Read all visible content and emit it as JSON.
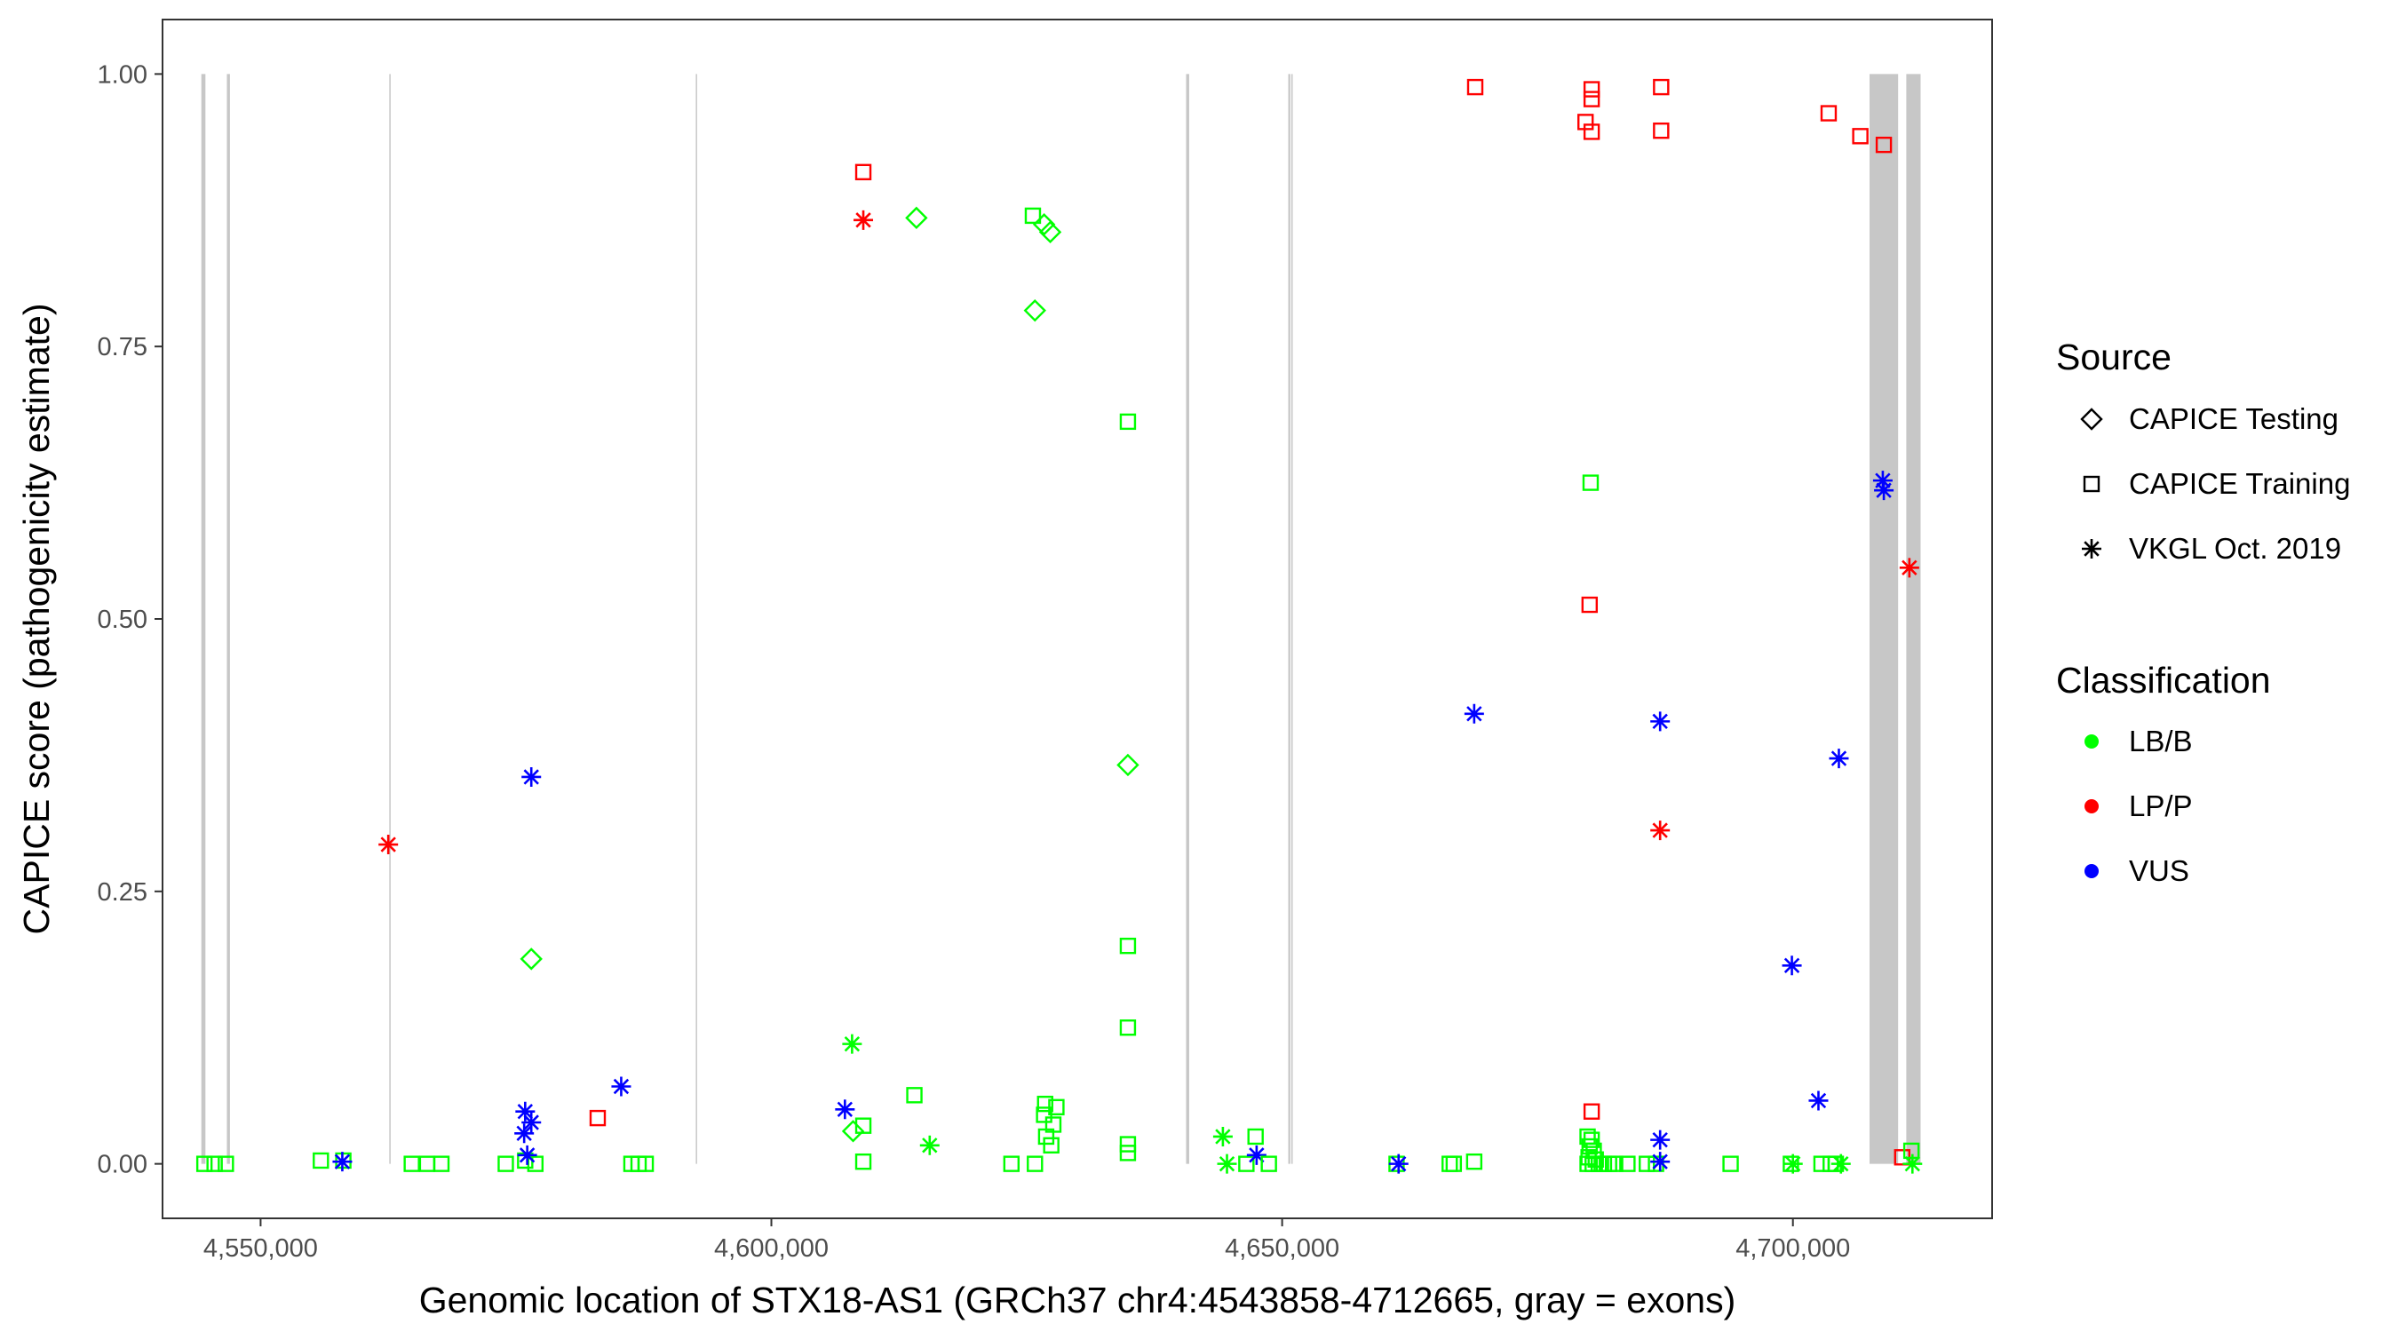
{
  "chart_data": {
    "type": "scatter",
    "title": "",
    "xlabel": "Genomic location of STX18-AS1 (GRCh37 chr4:4543858-4712665, gray = exons)",
    "ylabel": "CAPICE score (pathogenicity estimate)",
    "xlim": [
      4540400,
      4719500
    ],
    "ylim": [
      -0.05,
      1.05
    ],
    "x_ticks": [
      4550000,
      4600000,
      4650000,
      4700000
    ],
    "x_tick_labels": [
      "4,550,000",
      "4,600,000",
      "4,650,000",
      "4,700,000"
    ],
    "y_ticks": [
      0,
      0.25,
      0.5,
      0.75,
      1.0
    ],
    "y_tick_labels": [
      "0.00",
      "0.25",
      "0.50",
      "0.75",
      "1.00"
    ],
    "grid": false,
    "legend_position": "right",
    "exons": [
      [
        4544200,
        4544600
      ],
      [
        4546700,
        4547000
      ],
      [
        4562600,
        4562700
      ],
      [
        4592600,
        4592700
      ],
      [
        4640600,
        4640900
      ],
      [
        4650600,
        4650800
      ],
      [
        4650900,
        4651000
      ],
      [
        4707500,
        4710300
      ],
      [
        4711100,
        4712500
      ]
    ],
    "source_legend": {
      "title": "Source",
      "items": [
        {
          "label": "CAPICE Testing",
          "shape": "diamond"
        },
        {
          "label": "CAPICE Training",
          "shape": "square"
        },
        {
          "label": "VKGL Oct. 2019",
          "shape": "asterisk"
        }
      ]
    },
    "class_legend": {
      "title": "Classification",
      "items": [
        {
          "label": "LB/B",
          "color": "#00ff00"
        },
        {
          "label": "LP/P",
          "color": "#ff0000"
        },
        {
          "label": "VUS",
          "color": "#0000ff"
        }
      ]
    },
    "points": [
      {
        "x": 4544500,
        "y": 0.0,
        "shape": "square",
        "class": "LB/B"
      },
      {
        "x": 4545500,
        "y": 0.0,
        "shape": "square",
        "class": "LB/B"
      },
      {
        "x": 4546600,
        "y": 0.0,
        "shape": "square",
        "class": "LB/B"
      },
      {
        "x": 4555900,
        "y": 0.003,
        "shape": "square",
        "class": "LB/B"
      },
      {
        "x": 4558100,
        "y": 0.003,
        "shape": "square",
        "class": "LB/B"
      },
      {
        "x": 4558000,
        "y": 0.002,
        "shape": "asterisk",
        "class": "VUS"
      },
      {
        "x": 4564800,
        "y": 0.0,
        "shape": "square",
        "class": "LB/B"
      },
      {
        "x": 4566300,
        "y": 0.0,
        "shape": "square",
        "class": "LB/B"
      },
      {
        "x": 4567700,
        "y": 0.0,
        "shape": "square",
        "class": "LB/B"
      },
      {
        "x": 4562500,
        "y": 0.293,
        "shape": "asterisk",
        "class": "LP/P"
      },
      {
        "x": 4574000,
        "y": 0.0,
        "shape": "square",
        "class": "LB/B"
      },
      {
        "x": 4575900,
        "y": 0.003,
        "shape": "square",
        "class": "LB/B"
      },
      {
        "x": 4576900,
        "y": 0.0,
        "shape": "square",
        "class": "LB/B"
      },
      {
        "x": 4576500,
        "y": 0.188,
        "shape": "diamond",
        "class": "LB/B"
      },
      {
        "x": 4576500,
        "y": 0.355,
        "shape": "asterisk",
        "class": "VUS"
      },
      {
        "x": 4575900,
        "y": 0.048,
        "shape": "asterisk",
        "class": "VUS"
      },
      {
        "x": 4576500,
        "y": 0.038,
        "shape": "asterisk",
        "class": "VUS"
      },
      {
        "x": 4575800,
        "y": 0.028,
        "shape": "asterisk",
        "class": "VUS"
      },
      {
        "x": 4576100,
        "y": 0.008,
        "shape": "asterisk",
        "class": "VUS"
      },
      {
        "x": 4583000,
        "y": 0.042,
        "shape": "square",
        "class": "LP/P"
      },
      {
        "x": 4585300,
        "y": 0.071,
        "shape": "asterisk",
        "class": "VUS"
      },
      {
        "x": 4586300,
        "y": 0.0,
        "shape": "square",
        "class": "LB/B"
      },
      {
        "x": 4587000,
        "y": 0.0,
        "shape": "square",
        "class": "LB/B"
      },
      {
        "x": 4587700,
        "y": 0.0,
        "shape": "square",
        "class": "LB/B"
      },
      {
        "x": 4607200,
        "y": 0.05,
        "shape": "asterisk",
        "class": "VUS"
      },
      {
        "x": 4607900,
        "y": 0.11,
        "shape": "asterisk",
        "class": "LB/B"
      },
      {
        "x": 4608000,
        "y": 0.03,
        "shape": "diamond",
        "class": "LB/B"
      },
      {
        "x": 4609000,
        "y": 0.035,
        "shape": "square",
        "class": "LB/B"
      },
      {
        "x": 4609000,
        "y": 0.002,
        "shape": "square",
        "class": "LB/B"
      },
      {
        "x": 4609000,
        "y": 0.91,
        "shape": "square",
        "class": "LP/P"
      },
      {
        "x": 4609000,
        "y": 0.866,
        "shape": "asterisk",
        "class": "LP/P"
      },
      {
        "x": 4614200,
        "y": 0.868,
        "shape": "diamond",
        "class": "LB/B"
      },
      {
        "x": 4614000,
        "y": 0.063,
        "shape": "square",
        "class": "LB/B"
      },
      {
        "x": 4615500,
        "y": 0.017,
        "shape": "asterisk",
        "class": "LB/B"
      },
      {
        "x": 4623500,
        "y": 0.0,
        "shape": "square",
        "class": "LB/B"
      },
      {
        "x": 4625800,
        "y": 0.0,
        "shape": "square",
        "class": "LB/B"
      },
      {
        "x": 4625600,
        "y": 0.87,
        "shape": "square",
        "class": "LB/B"
      },
      {
        "x": 4626700,
        "y": 0.862,
        "shape": "diamond",
        "class": "LB/B"
      },
      {
        "x": 4627300,
        "y": 0.855,
        "shape": "diamond",
        "class": "LB/B"
      },
      {
        "x": 4625800,
        "y": 0.783,
        "shape": "diamond",
        "class": "LB/B"
      },
      {
        "x": 4626800,
        "y": 0.055,
        "shape": "square",
        "class": "LB/B"
      },
      {
        "x": 4627900,
        "y": 0.052,
        "shape": "square",
        "class": "LB/B"
      },
      {
        "x": 4626700,
        "y": 0.045,
        "shape": "square",
        "class": "LB/B"
      },
      {
        "x": 4627600,
        "y": 0.036,
        "shape": "square",
        "class": "LB/B"
      },
      {
        "x": 4626900,
        "y": 0.025,
        "shape": "square",
        "class": "LB/B"
      },
      {
        "x": 4627400,
        "y": 0.017,
        "shape": "square",
        "class": "LB/B"
      },
      {
        "x": 4634900,
        "y": 0.681,
        "shape": "square",
        "class": "LB/B"
      },
      {
        "x": 4634900,
        "y": 0.366,
        "shape": "diamond",
        "class": "LB/B"
      },
      {
        "x": 4634900,
        "y": 0.2,
        "shape": "square",
        "class": "LB/B"
      },
      {
        "x": 4634900,
        "y": 0.125,
        "shape": "square",
        "class": "LB/B"
      },
      {
        "x": 4634900,
        "y": 0.018,
        "shape": "square",
        "class": "LB/B"
      },
      {
        "x": 4634900,
        "y": 0.01,
        "shape": "square",
        "class": "LB/B"
      },
      {
        "x": 4644200,
        "y": 0.025,
        "shape": "asterisk",
        "class": "LB/B"
      },
      {
        "x": 4644600,
        "y": 0.0,
        "shape": "asterisk",
        "class": "LB/B"
      },
      {
        "x": 4646500,
        "y": 0.0,
        "shape": "square",
        "class": "LB/B"
      },
      {
        "x": 4647400,
        "y": 0.025,
        "shape": "square",
        "class": "LB/B"
      },
      {
        "x": 4647500,
        "y": 0.008,
        "shape": "asterisk",
        "class": "VUS"
      },
      {
        "x": 4648700,
        "y": 0.0,
        "shape": "square",
        "class": "LB/B"
      },
      {
        "x": 4661200,
        "y": 0.0,
        "shape": "square",
        "class": "LB/B"
      },
      {
        "x": 4661400,
        "y": 0.0,
        "shape": "asterisk",
        "class": "VUS"
      },
      {
        "x": 4666400,
        "y": 0.0,
        "shape": "square",
        "class": "LB/B"
      },
      {
        "x": 4666800,
        "y": 0.0,
        "shape": "square",
        "class": "LB/B"
      },
      {
        "x": 4668800,
        "y": 0.002,
        "shape": "square",
        "class": "LB/B"
      },
      {
        "x": 4668900,
        "y": 0.988,
        "shape": "square",
        "class": "LP/P"
      },
      {
        "x": 4668800,
        "y": 0.413,
        "shape": "asterisk",
        "class": "VUS"
      },
      {
        "x": 4679700,
        "y": 0.956,
        "shape": "square",
        "class": "LP/P"
      },
      {
        "x": 4680300,
        "y": 0.986,
        "shape": "square",
        "class": "LP/P"
      },
      {
        "x": 4680300,
        "y": 0.977,
        "shape": "square",
        "class": "LP/P"
      },
      {
        "x": 4680300,
        "y": 0.947,
        "shape": "square",
        "class": "LP/P"
      },
      {
        "x": 4680200,
        "y": 0.625,
        "shape": "square",
        "class": "LB/B"
      },
      {
        "x": 4680100,
        "y": 0.513,
        "shape": "square",
        "class": "LP/P"
      },
      {
        "x": 4680300,
        "y": 0.048,
        "shape": "square",
        "class": "LP/P"
      },
      {
        "x": 4679900,
        "y": 0.025,
        "shape": "square",
        "class": "LB/B"
      },
      {
        "x": 4680300,
        "y": 0.022,
        "shape": "square",
        "class": "LB/B"
      },
      {
        "x": 4680100,
        "y": 0.016,
        "shape": "square",
        "class": "LB/B"
      },
      {
        "x": 4680500,
        "y": 0.012,
        "shape": "square",
        "class": "LB/B"
      },
      {
        "x": 4680000,
        "y": 0.006,
        "shape": "square",
        "class": "LB/B"
      },
      {
        "x": 4680700,
        "y": 0.004,
        "shape": "square",
        "class": "LB/B"
      },
      {
        "x": 4679900,
        "y": 0.0,
        "shape": "square",
        "class": "LB/B"
      },
      {
        "x": 4680400,
        "y": 0.0,
        "shape": "square",
        "class": "LB/B"
      },
      {
        "x": 4681000,
        "y": 0.0,
        "shape": "square",
        "class": "LB/B"
      },
      {
        "x": 4681500,
        "y": 0.0,
        "shape": "square",
        "class": "LB/B"
      },
      {
        "x": 4682000,
        "y": 0.0,
        "shape": "square",
        "class": "LB/B"
      },
      {
        "x": 4682600,
        "y": 0.0,
        "shape": "square",
        "class": "LB/B"
      },
      {
        "x": 4683800,
        "y": 0.0,
        "shape": "square",
        "class": "LB/B"
      },
      {
        "x": 4685700,
        "y": 0.0,
        "shape": "square",
        "class": "LB/B"
      },
      {
        "x": 4686600,
        "y": 0.0,
        "shape": "square",
        "class": "LB/B"
      },
      {
        "x": 4687100,
        "y": 0.988,
        "shape": "square",
        "class": "LP/P"
      },
      {
        "x": 4687100,
        "y": 0.948,
        "shape": "square",
        "class": "LP/P"
      },
      {
        "x": 4687000,
        "y": 0.406,
        "shape": "asterisk",
        "class": "VUS"
      },
      {
        "x": 4687000,
        "y": 0.306,
        "shape": "asterisk",
        "class": "LP/P"
      },
      {
        "x": 4687000,
        "y": 0.022,
        "shape": "asterisk",
        "class": "VUS"
      },
      {
        "x": 4687000,
        "y": 0.002,
        "shape": "asterisk",
        "class": "VUS"
      },
      {
        "x": 4693900,
        "y": 0.0,
        "shape": "square",
        "class": "LB/B"
      },
      {
        "x": 4699800,
        "y": 0.0,
        "shape": "square",
        "class": "LB/B"
      },
      {
        "x": 4699900,
        "y": 0.182,
        "shape": "asterisk",
        "class": "VUS"
      },
      {
        "x": 4700000,
        "y": 0.0,
        "shape": "asterisk",
        "class": "LB/B"
      },
      {
        "x": 4702500,
        "y": 0.058,
        "shape": "asterisk",
        "class": "VUS"
      },
      {
        "x": 4702800,
        "y": 0.0,
        "shape": "square",
        "class": "LB/B"
      },
      {
        "x": 4703700,
        "y": 0.0,
        "shape": "square",
        "class": "LB/B"
      },
      {
        "x": 4704200,
        "y": 0.0,
        "shape": "square",
        "class": "LB/B"
      },
      {
        "x": 4704500,
        "y": 0.372,
        "shape": "asterisk",
        "class": "VUS"
      },
      {
        "x": 4704700,
        "y": 0.0,
        "shape": "asterisk",
        "class": "LB/B"
      },
      {
        "x": 4703500,
        "y": 0.964,
        "shape": "square",
        "class": "LP/P"
      },
      {
        "x": 4706600,
        "y": 0.943,
        "shape": "square",
        "class": "LP/P"
      },
      {
        "x": 4708900,
        "y": 0.935,
        "shape": "square",
        "class": "LP/P"
      },
      {
        "x": 4708800,
        "y": 0.627,
        "shape": "asterisk",
        "class": "VUS"
      },
      {
        "x": 4708900,
        "y": 0.618,
        "shape": "asterisk",
        "class": "VUS"
      },
      {
        "x": 4711400,
        "y": 0.547,
        "shape": "asterisk",
        "class": "LP/P"
      },
      {
        "x": 4710700,
        "y": 0.006,
        "shape": "square",
        "class": "LP/P"
      },
      {
        "x": 4711600,
        "y": 0.012,
        "shape": "square",
        "class": "LB/B"
      },
      {
        "x": 4711700,
        "y": 0.0,
        "shape": "asterisk",
        "class": "LB/B"
      }
    ]
  }
}
